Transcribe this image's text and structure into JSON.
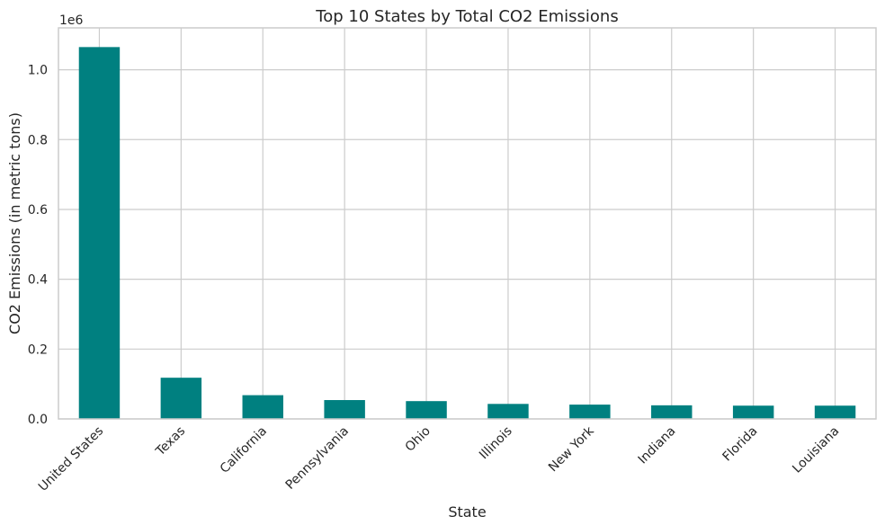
{
  "chart_data": {
    "type": "bar",
    "title": "Top 10 States by Total CO2 Emissions",
    "xlabel": "State",
    "ylabel": "CO2 Emissions (in metric tons)",
    "offset_label": "1e6",
    "categories": [
      "United States",
      "Texas",
      "California",
      "Pennsylvania",
      "Ohio",
      "Illinois",
      "New York",
      "Indiana",
      "Florida",
      "Louisiana"
    ],
    "values": [
      1065000,
      118000,
      68000,
      54000,
      51000,
      43000,
      41000,
      39000,
      38000,
      38000
    ],
    "ylim": [
      0,
      1120000
    ],
    "yticks": [
      0,
      200000,
      400000,
      600000,
      800000,
      1000000
    ],
    "ytick_labels": [
      "0.0",
      "0.2",
      "0.4",
      "0.6",
      "0.8",
      "1.0"
    ],
    "bar_color": "#008080",
    "grid": true
  }
}
